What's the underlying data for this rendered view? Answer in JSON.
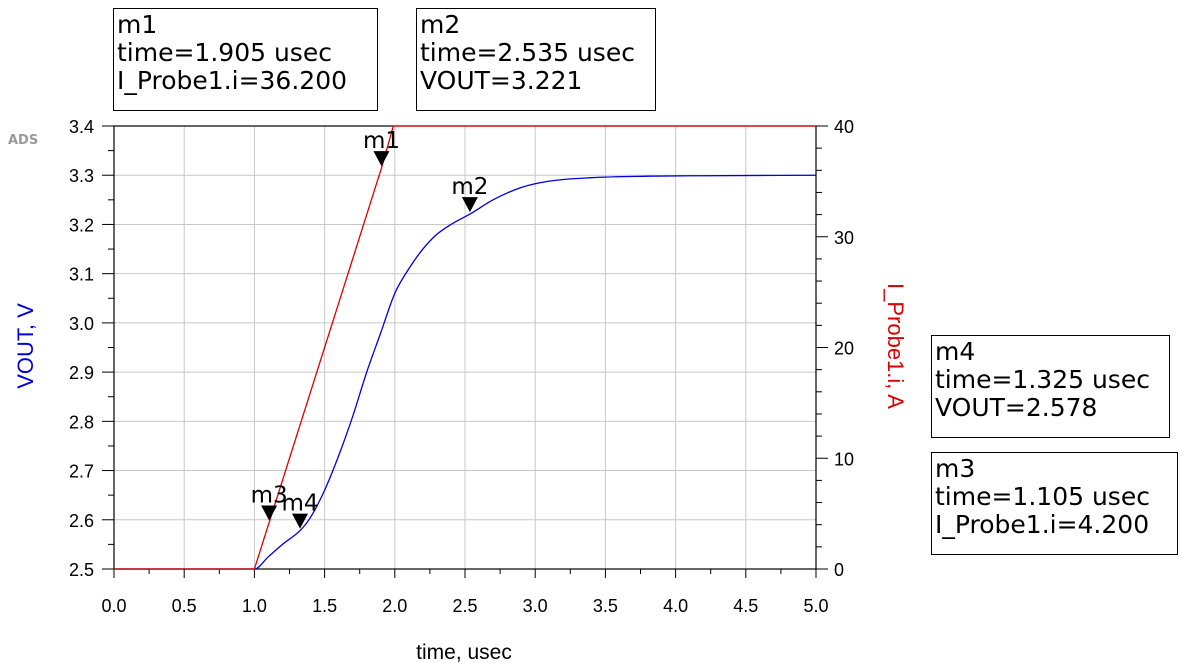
{
  "logo": "ADS",
  "markers": [
    {
      "id": "m1",
      "lines": [
        "m1",
        "time=1.905 usec",
        "I_Probe1.i=36.200"
      ],
      "x": 1.905,
      "axis": "right",
      "y": 36.2
    },
    {
      "id": "m2",
      "lines": [
        "m2",
        "time=2.535 usec",
        "VOUT=3.221"
      ],
      "x": 2.535,
      "axis": "left",
      "y": 3.221
    },
    {
      "id": "m4",
      "lines": [
        "m4",
        "time=1.325 usec",
        "VOUT=2.578"
      ],
      "x": 1.325,
      "axis": "left",
      "y": 2.578
    },
    {
      "id": "m3",
      "lines": [
        "m3",
        "time=1.105 usec",
        "I_Probe1.i=4.200"
      ],
      "x": 1.105,
      "axis": "right",
      "y": 4.2
    }
  ],
  "chart_data": {
    "type": "line",
    "xlabel": "time, usec",
    "ylabel_left": "VOUT, V",
    "ylabel_right": "I_Probe1.i, A",
    "xlim": [
      0.0,
      5.0
    ],
    "ylim_left": [
      2.5,
      3.4
    ],
    "ylim_right": [
      0,
      40
    ],
    "x_ticks": [
      "0.0",
      "0.5",
      "1.0",
      "1.5",
      "2.0",
      "2.5",
      "3.0",
      "3.5",
      "4.0",
      "4.5",
      "5.0"
    ],
    "y_left_ticks": [
      "2.5",
      "2.6",
      "2.7",
      "2.8",
      "2.9",
      "3.0",
      "3.1",
      "3.2",
      "3.3",
      "3.4"
    ],
    "y_right_ticks": [
      "0",
      "10",
      "20",
      "30",
      "40"
    ],
    "grid": true,
    "colors": {
      "VOUT": "#0000dd",
      "I_Probe1.i": "#dd0000"
    },
    "series": [
      {
        "name": "VOUT",
        "axis": "left",
        "x": [
          0.0,
          1.0,
          1.1,
          1.2,
          1.325,
          1.4,
          1.5,
          1.6,
          1.7,
          1.8,
          1.9,
          2.0,
          2.1,
          2.2,
          2.3,
          2.4,
          2.535,
          2.7,
          2.9,
          3.1,
          3.4,
          3.8,
          4.2,
          5.0
        ],
        "y": [
          2.5,
          2.5,
          2.525,
          2.55,
          2.578,
          2.605,
          2.66,
          2.73,
          2.81,
          2.9,
          2.98,
          3.06,
          3.11,
          3.15,
          3.18,
          3.2,
          3.221,
          3.25,
          3.275,
          3.288,
          3.295,
          3.298,
          3.299,
          3.3
        ]
      },
      {
        "name": "I_Probe1.i",
        "axis": "right",
        "x": [
          0.0,
          1.0,
          1.105,
          1.905,
          1.99,
          5.0
        ],
        "y": [
          0,
          0,
          4.2,
          36.2,
          40,
          40
        ]
      }
    ]
  }
}
